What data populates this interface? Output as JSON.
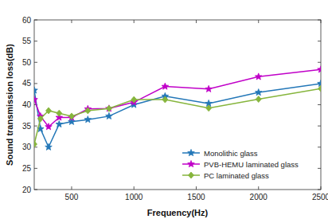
{
  "chart_data": {
    "type": "line",
    "x_label": "Frequency(Hz)",
    "y_label": "Sound transmission loss(dB)",
    "x": [
      200,
      250,
      315,
      400,
      500,
      630,
      800,
      1000,
      1250,
      1600,
      2000,
      2500
    ],
    "xlim": [
      200,
      2500
    ],
    "xticks": [
      500,
      1000,
      1500,
      2000,
      2500
    ],
    "ylim": [
      20,
      60
    ],
    "yticks": [
      20,
      25,
      30,
      35,
      40,
      45,
      50,
      55,
      60
    ],
    "grid": false,
    "legend": "lower right",
    "series": [
      {
        "name": "Monolithic glass",
        "color": "#2377b8",
        "marker": "star",
        "values": [
          43.4,
          34.3,
          30.0,
          35.4,
          36.0,
          36.5,
          37.3,
          40.0,
          42.0,
          40.3,
          42.9,
          45.0
        ]
      },
      {
        "name": "PVB-HEMU laminated glass",
        "color": "#c000c8",
        "marker": "star",
        "values": [
          41.2,
          37.3,
          34.8,
          37.0,
          37.0,
          39.0,
          39.1,
          40.6,
          44.3,
          43.7,
          46.6,
          48.3
        ]
      },
      {
        "name": "PC laminated glass",
        "color": "#86b53c",
        "marker": "diamond",
        "values": [
          30.7,
          36.7,
          38.6,
          38.0,
          37.3,
          38.6,
          39.1,
          41.2,
          41.2,
          39.2,
          41.3,
          43.8
        ]
      }
    ]
  }
}
